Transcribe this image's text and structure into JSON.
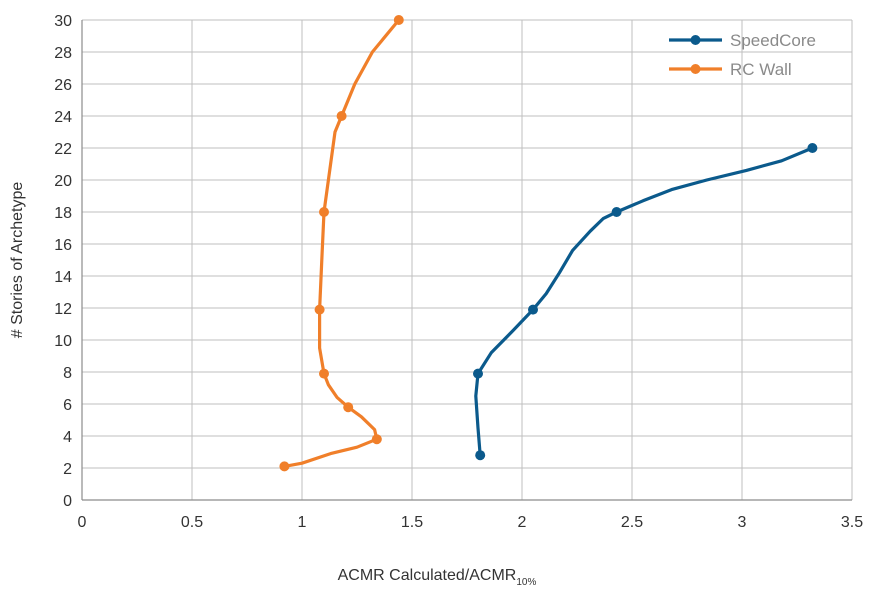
{
  "chart_data": {
    "type": "line",
    "title": "",
    "xlabel": "ACMR Calculated/ACMR",
    "xlabel_subscript": "10%",
    "ylabel": "# Stories of Archetype",
    "xlim": [
      0,
      3.5
    ],
    "ylim": [
      0,
      30
    ],
    "xticks": [
      0,
      0.5,
      1,
      1.5,
      2,
      2.5,
      3,
      3.5
    ],
    "xtick_labels": [
      "0",
      "0.5",
      "1",
      "1.5",
      "2",
      "2.5",
      "3",
      "3.5"
    ],
    "yticks": [
      0,
      2,
      4,
      6,
      8,
      10,
      12,
      14,
      16,
      18,
      20,
      22,
      24,
      26,
      28,
      30
    ],
    "ytick_labels": [
      "0",
      "2",
      "4",
      "6",
      "8",
      "10",
      "12",
      "14",
      "16",
      "18",
      "20",
      "22",
      "24",
      "26",
      "28",
      "30"
    ],
    "grid": true,
    "legend_position": "top-right",
    "series": [
      {
        "name": "SpeedCore",
        "color": "#0b5a8c",
        "markers": [
          [
            1.81,
            2.8
          ],
          [
            1.8,
            7.9
          ],
          [
            2.05,
            11.9
          ],
          [
            2.43,
            18
          ],
          [
            3.32,
            22
          ]
        ],
        "path": [
          [
            1.81,
            2.8
          ],
          [
            1.8,
            4.5
          ],
          [
            1.79,
            6.5
          ],
          [
            1.8,
            7.9
          ],
          [
            1.86,
            9.2
          ],
          [
            1.96,
            10.6
          ],
          [
            2.05,
            11.9
          ],
          [
            2.11,
            12.9
          ],
          [
            2.17,
            14.2
          ],
          [
            2.23,
            15.6
          ],
          [
            2.31,
            16.8
          ],
          [
            2.37,
            17.6
          ],
          [
            2.43,
            18
          ],
          [
            2.55,
            18.7
          ],
          [
            2.68,
            19.4
          ],
          [
            2.84,
            20
          ],
          [
            3.02,
            20.6
          ],
          [
            3.18,
            21.2
          ],
          [
            3.32,
            22
          ]
        ]
      },
      {
        "name": "RC Wall",
        "color": "#f07f2a",
        "markers": [
          [
            0.92,
            2.1
          ],
          [
            1.34,
            3.8
          ],
          [
            1.21,
            5.8
          ],
          [
            1.1,
            7.9
          ],
          [
            1.08,
            11.9
          ],
          [
            1.1,
            18
          ],
          [
            1.18,
            24
          ],
          [
            1.44,
            30
          ]
        ],
        "path": [
          [
            0.92,
            2.1
          ],
          [
            1.0,
            2.3
          ],
          [
            1.13,
            2.9
          ],
          [
            1.25,
            3.3
          ],
          [
            1.34,
            3.8
          ],
          [
            1.33,
            4.4
          ],
          [
            1.27,
            5.2
          ],
          [
            1.21,
            5.8
          ],
          [
            1.16,
            6.4
          ],
          [
            1.12,
            7.2
          ],
          [
            1.1,
            7.9
          ],
          [
            1.08,
            9.5
          ],
          [
            1.08,
            11.9
          ],
          [
            1.09,
            15
          ],
          [
            1.1,
            18
          ],
          [
            1.13,
            21
          ],
          [
            1.15,
            23
          ],
          [
            1.18,
            24
          ],
          [
            1.24,
            26
          ],
          [
            1.32,
            28
          ],
          [
            1.44,
            30
          ]
        ]
      }
    ]
  }
}
